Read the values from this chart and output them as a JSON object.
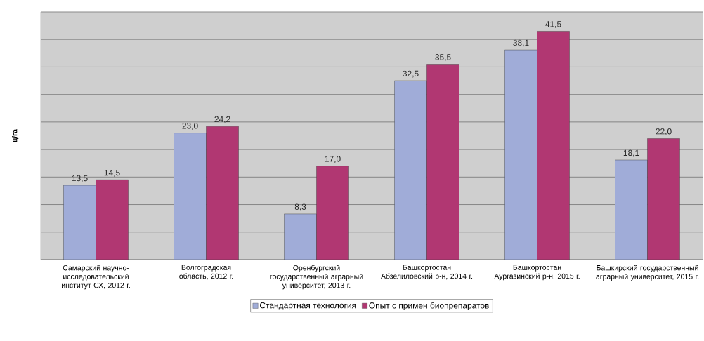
{
  "chart_data": {
    "type": "bar",
    "ylabel": "ц/га",
    "categories": [
      "Самарский научно-исследовательский институт СХ, 2012 г.",
      "Волгоградская область, 2012 г.",
      "Оренбургский государственный аграрный университет, 2013 г.",
      "Башкортостан Абзелиловский р-н, 2014 г.",
      "Башкортостан Аургазинский р-н, 2015 г.",
      "Башкирский государственный аграрный университет, 2015 г."
    ],
    "series": [
      {
        "name": "Стандартная технология",
        "color": "#a0acd8",
        "values": [
          13.5,
          23.0,
          8.3,
          32.5,
          38.1,
          18.1
        ],
        "value_labels": [
          "13,5",
          "23,0",
          "8,3",
          "32,5",
          "38,1",
          "18,1"
        ]
      },
      {
        "name": "Опыт с примен биопрепаратов",
        "color": "#b13772",
        "values": [
          14.5,
          24.2,
          17.0,
          35.5,
          41.5,
          22.0
        ],
        "value_labels": [
          "14,5",
          "24,2",
          "17,0",
          "35,5",
          "41,5",
          "22,0"
        ]
      }
    ],
    "ylim": [
      0,
      45
    ],
    "yticks": [
      {
        "value": 0,
        "label": null
      },
      {
        "value": 5,
        "label": null
      },
      {
        "value": 10,
        "label": null
      },
      {
        "value": 15,
        "label": null
      },
      {
        "value": 20,
        "label": null
      },
      {
        "value": 25,
        "label": null
      },
      {
        "value": 30,
        "label": null
      },
      {
        "value": 35,
        "label": null
      },
      {
        "value": 40,
        "label": null
      },
      {
        "value": 45,
        "label": null
      }
    ],
    "grid": "y",
    "legend": "bottom",
    "tick_labels": "x"
  }
}
